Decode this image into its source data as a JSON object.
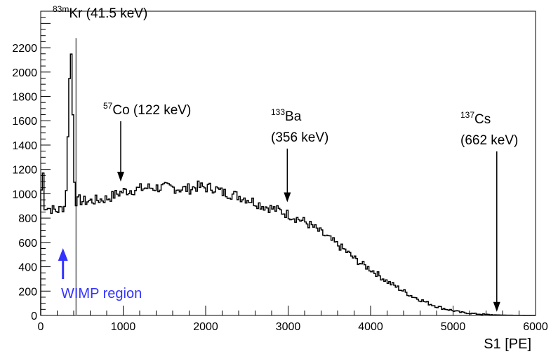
{
  "chart_data": {
    "type": "line",
    "style": "step-histogram",
    "xlabel": "S1 [PE]",
    "ylabel": "",
    "title": "",
    "xlim": [
      0,
      6000
    ],
    "ylim": [
      0,
      2500
    ],
    "xticks": [
      0,
      1000,
      2000,
      3000,
      4000,
      5000,
      6000
    ],
    "yticks": [
      0,
      200,
      400,
      600,
      800,
      1000,
      1200,
      1400,
      1600,
      1800,
      2000,
      2200
    ],
    "grid": false,
    "legend": "none",
    "series": [
      {
        "x": [
          0,
          25,
          50,
          100,
          150,
          200,
          250,
          300,
          320,
          340,
          360,
          380,
          400,
          420,
          440,
          470,
          500,
          600,
          700,
          800,
          900,
          1000,
          1100,
          1200,
          1300,
          1400,
          1500,
          1600,
          1700,
          1800,
          1900,
          2000,
          2100,
          2200,
          2300,
          2400,
          2500,
          2600,
          2700,
          2800,
          2900,
          3000,
          3100,
          3200,
          3300,
          3400,
          3500,
          3600,
          3700,
          3800,
          3900,
          4000,
          4100,
          4200,
          4300,
          4400,
          4500,
          4600,
          4700,
          4800,
          4900,
          5000,
          5100,
          5200,
          5300,
          5400,
          5500,
          5600,
          5700,
          5800,
          5900,
          6000
        ],
        "y": [
          900,
          1230,
          900,
          880,
          870,
          860,
          880,
          900,
          1200,
          1700,
          2280,
          2000,
          1300,
          950,
          930,
          950,
          940,
          940,
          950,
          960,
          990,
          1020,
          1030,
          1040,
          1050,
          1050,
          1050,
          1050,
          1040,
          1040,
          1060,
          1050,
          1050,
          1010,
          1000,
          980,
          960,
          930,
          900,
          880,
          860,
          830,
          800,
          770,
          730,
          680,
          630,
          580,
          530,
          470,
          420,
          380,
          330,
          280,
          240,
          200,
          160,
          130,
          100,
          75,
          55,
          40,
          25,
          18,
          12,
          8,
          5,
          3,
          2,
          1,
          0,
          0
        ]
      }
    ],
    "markers": [
      {
        "x": 430,
        "color": "#888888"
      }
    ],
    "annotations": [
      {
        "iso": "83m",
        "name": "Kr",
        "energy": "(41.5 keV)",
        "x": 430,
        "arrow": false
      },
      {
        "iso": "57",
        "name": "Co",
        "energy": "(122 keV)",
        "x": 970,
        "arrow_y": 1100
      },
      {
        "iso": "133",
        "name": "Ba",
        "energy": "(356 keV)",
        "x": 2990,
        "arrow_y": 930
      },
      {
        "iso": "137",
        "name": "Cs",
        "energy": "(662 keV)",
        "x": 5530,
        "arrow_y": 30
      }
    ],
    "region_label": {
      "text": "WIMP region",
      "x": 270,
      "color": "#3333ff"
    }
  }
}
